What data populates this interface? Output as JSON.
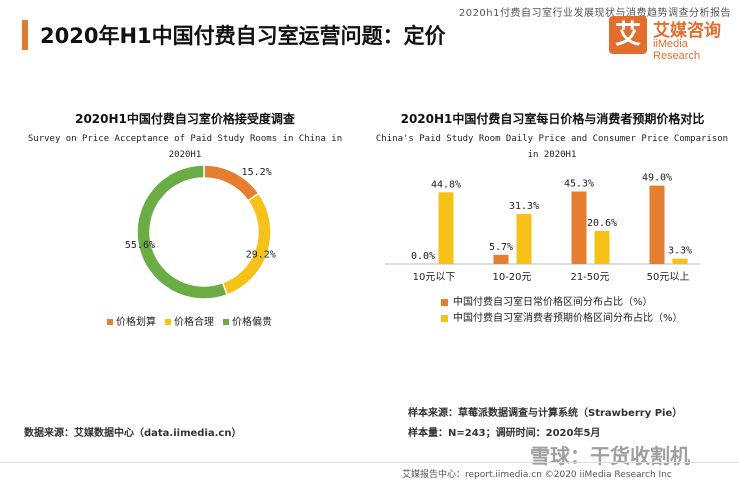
{
  "header": {
    "report_name": "2020h1付费自习室行业发展现状与消费趋势调查分析报告",
    "title": "2020年H1中国付费自习室运营问题：定价",
    "logo_glyph": "艾",
    "logo_cn": "艾媒咨询",
    "logo_en": "iiMedia Research"
  },
  "colors": {
    "accent": "#e07b2a",
    "orange": "#e67e30",
    "yellow": "#f6c21a",
    "green": "#6aad45"
  },
  "left_chart": {
    "title": "2020H1中国付费自习室价格接受度调查",
    "subtitle_line1": "Survey on Price Acceptance of Paid Study Rooms in China in",
    "subtitle_line2": "2020H1"
  },
  "right_chart": {
    "title": "2020H1中国付费自习室每日价格与消费者预期价格对比",
    "subtitle_line1": "China's Paid Study Room Daily Price and Consumer Price Comparison",
    "subtitle_line2": "in 2020H1"
  },
  "chart_data": [
    {
      "type": "pie",
      "title": "2020H1中国付费自习室价格接受度调查",
      "categories": [
        "价格划算",
        "价格合理",
        "价格偏贵"
      ],
      "values": [
        15.2,
        29.2,
        55.6
      ],
      "value_labels": [
        "15.2%",
        "29.2%",
        "55.6%"
      ],
      "colors": [
        "#e67e30",
        "#f6c21a",
        "#6aad45"
      ],
      "donut": true,
      "legend": "bottom"
    },
    {
      "type": "bar",
      "title": "2020H1中国付费自习室每日价格与消费者预期价格对比",
      "categories": [
        "10元以下",
        "10-20元",
        "21-50元",
        "50元以上"
      ],
      "series": [
        {
          "name": "中国付费自习室日常价格区间分布占比（%）",
          "values": [
            0.0,
            5.7,
            45.3,
            49.0
          ],
          "labels": [
            "0.0%",
            "5.7%",
            "45.3%",
            "49.0%"
          ],
          "color": "#e67e30"
        },
        {
          "name": "中国付费自习室消费者预期价格区间分布占比（%）",
          "values": [
            44.8,
            31.3,
            20.6,
            3.3
          ],
          "labels": [
            "44.8%",
            "31.3%",
            "20.6%",
            "3.3%"
          ],
          "color": "#f6c21a"
        }
      ],
      "ylim": [
        0,
        50
      ],
      "legend": "bottom"
    }
  ],
  "sources": {
    "left_source": "数据来源：艾媒数据中心（data.iimedia.cn）",
    "right_source": "样本来源：草莓派数据调查与计算系统（Strawberry Pie）",
    "right_sample": "样本量：N=243；调研时间：2020年5月"
  },
  "footer": {
    "text": "艾媒报告中心：report.iimedia.cn   ©2020   iiMedia Research  Inc",
    "watermark": "雪球：干货收割机"
  }
}
